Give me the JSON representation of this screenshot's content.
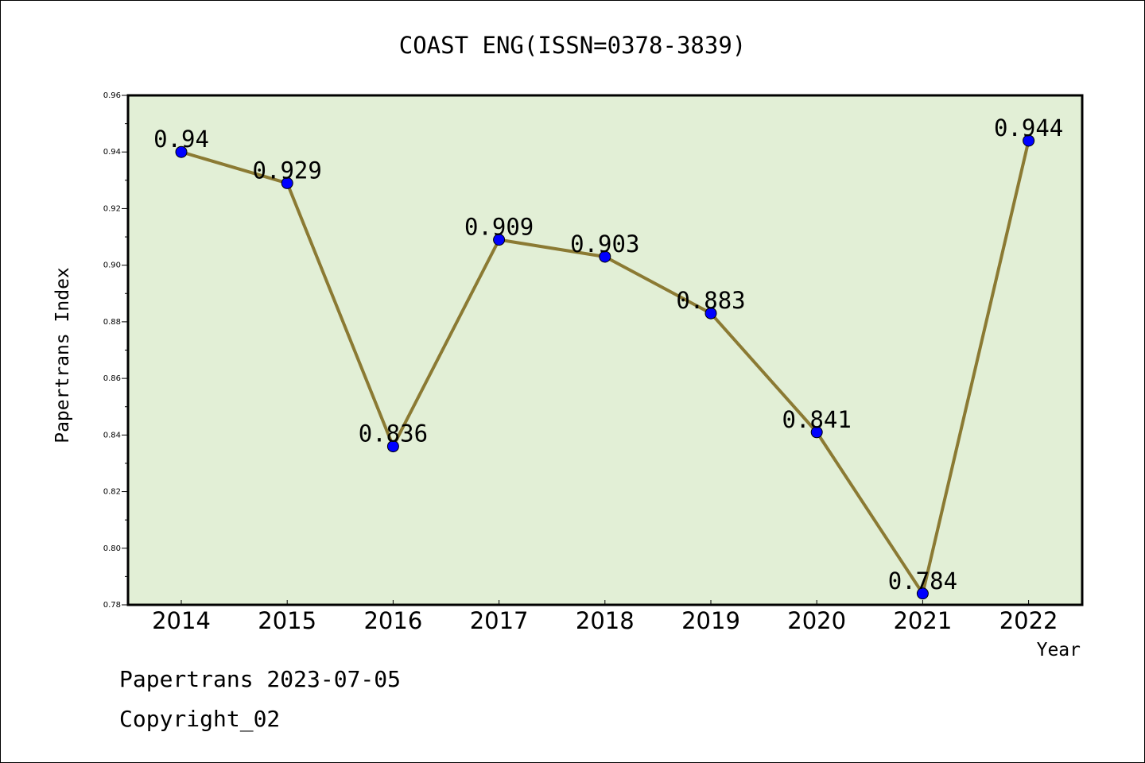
{
  "chart_data": {
    "type": "line",
    "title": "COAST ENG(ISSN=0378-3839)",
    "xlabel": "Year",
    "ylabel": "Papertrans Index",
    "categories": [
      "2014",
      "2015",
      "2016",
      "2017",
      "2018",
      "2019",
      "2020",
      "2021",
      "2022"
    ],
    "series": [
      {
        "values": [
          0.94,
          0.929,
          0.836,
          0.909,
          0.903,
          0.883,
          0.841,
          0.784,
          0.944
        ],
        "labels": [
          "0.94",
          "0.929",
          "0.836",
          "0.909",
          "0.903",
          "0.883",
          "0.841",
          "0.784",
          "0.944"
        ]
      }
    ],
    "ylim": [
      0.78,
      0.96
    ],
    "yticks": [
      "0.78",
      "0.80",
      "0.82",
      "0.84",
      "0.86",
      "0.88",
      "0.90",
      "0.92",
      "0.94",
      "0.96"
    ],
    "grid": false,
    "colors": {
      "plot_background": "#e2efd6",
      "line": "#8b7a33",
      "marker": "#0000ff"
    }
  },
  "footer": {
    "line1": "Papertrans 2023-07-05",
    "line2": "Copyright_02"
  }
}
